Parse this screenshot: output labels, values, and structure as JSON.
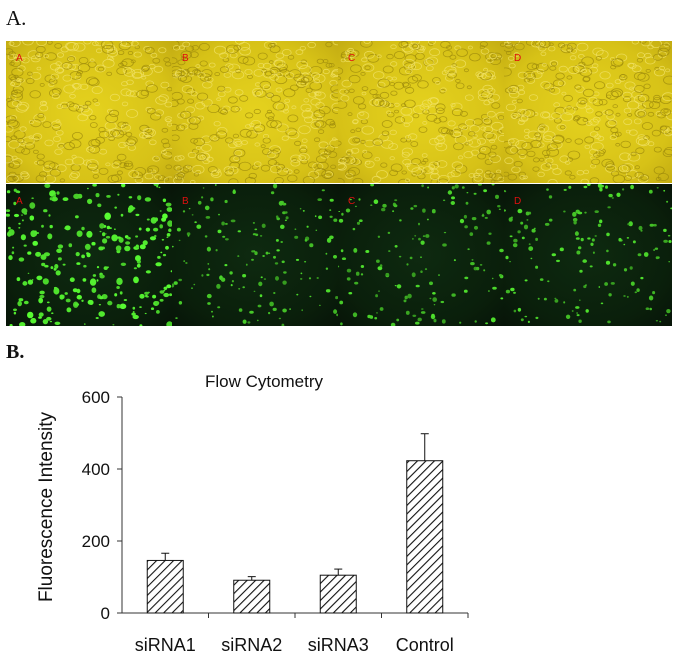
{
  "panel_a_label": "A.",
  "panel_b_label": "B.",
  "microscopy": {
    "bright_row": [
      "A",
      "B",
      "C",
      "D"
    ],
    "fluor_row": [
      "A",
      "B",
      "C",
      "D"
    ]
  },
  "chart_data": {
    "type": "bar",
    "title": "Flow Cytometry",
    "xlabel": "",
    "ylabel": "Fluorescence Intensity",
    "categories": [
      "siRNA1",
      "siRNA2",
      "siRNA3",
      "Control"
    ],
    "values": [
      146,
      91,
      105,
      423
    ],
    "errors": [
      20,
      10,
      17,
      75
    ],
    "ylim": [
      0,
      600
    ],
    "yticks": [
      0,
      200,
      400,
      600
    ],
    "bar_fill": "hatched",
    "grid": false
  }
}
